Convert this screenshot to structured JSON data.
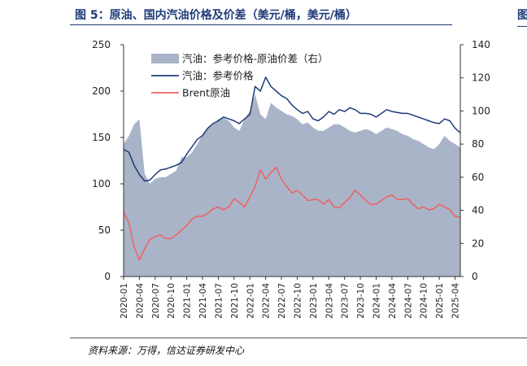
{
  "figure": {
    "title": "图 5：原油、国内汽油价格及价差（美元/桶，美元/桶）",
    "edge_title": "图",
    "source": "资料来源：万得，信达证券研发中心"
  },
  "chart_data": {
    "type": "area+line",
    "dates": [
      "2020-01",
      "2020-02",
      "2020-03",
      "2020-04",
      "2020-05",
      "2020-06",
      "2020-07",
      "2020-08",
      "2020-09",
      "2020-10",
      "2020-11",
      "2020-12",
      "2021-01",
      "2021-02",
      "2021-03",
      "2021-04",
      "2021-05",
      "2021-06",
      "2021-07",
      "2021-08",
      "2021-09",
      "2021-10",
      "2021-11",
      "2021-12",
      "2022-01",
      "2022-02",
      "2022-03",
      "2022-04",
      "2022-05",
      "2022-06",
      "2022-07",
      "2022-08",
      "2022-09",
      "2022-10",
      "2022-11",
      "2022-12",
      "2023-01",
      "2023-02",
      "2023-03",
      "2023-04",
      "2023-05",
      "2023-06",
      "2023-07",
      "2023-08",
      "2023-09",
      "2023-10",
      "2023-11",
      "2023-12",
      "2024-01",
      "2024-02",
      "2024-03",
      "2024-04",
      "2024-05",
      "2024-06",
      "2024-07",
      "2024-08",
      "2024-09",
      "2024-10",
      "2024-11",
      "2024-12",
      "2025-01",
      "2025-02",
      "2025-03",
      "2025-04",
      "2025-05"
    ],
    "x_tick_labels": [
      "2020-01",
      "2020-04",
      "2020-07",
      "2020-10",
      "2021-01",
      "2021-04",
      "2021-07",
      "2021-10",
      "2022-01",
      "2022-04",
      "2022-07",
      "2022-10",
      "2023-01",
      "2023-04",
      "2023-07",
      "2023-10",
      "2024-01",
      "2024-04",
      "2024-07",
      "2024-10",
      "2025-01",
      "2025-04"
    ],
    "y_left": {
      "ylim": [
        0,
        250
      ],
      "ticks": [
        0,
        50,
        100,
        150,
        200,
        250
      ]
    },
    "y_right": {
      "ylim": [
        0,
        140
      ],
      "ticks": [
        0,
        20,
        40,
        60,
        80,
        100,
        120,
        140
      ]
    },
    "legend_position": "top-left",
    "series": [
      {
        "name": "汽油：参考价格-原油价差（右）",
        "axis": "right",
        "style": "area",
        "color": "#aab4c8",
        "values": [
          80,
          85,
          92,
          95,
          62,
          56,
          59,
          60,
          60,
          62,
          64,
          72,
          72,
          75,
          80,
          86,
          90,
          92,
          95,
          96,
          94,
          90,
          88,
          95,
          100,
          110,
          98,
          95,
          105,
          102,
          100,
          98,
          97,
          95,
          92,
          93,
          90,
          88,
          88,
          90,
          92,
          92,
          90,
          88,
          87,
          88,
          89,
          88,
          86,
          88,
          90,
          89,
          88,
          86,
          85,
          83,
          82,
          80,
          78,
          77,
          80,
          85,
          82,
          80,
          78
        ]
      },
      {
        "name": "汽油：参考价格",
        "axis": "left",
        "style": "line",
        "color": "#1f3b78",
        "values": [
          137,
          134,
          120,
          110,
          103,
          104,
          110,
          115,
          116,
          118,
          120,
          123,
          132,
          140,
          148,
          152,
          160,
          165,
          168,
          172,
          170,
          168,
          165,
          170,
          175,
          205,
          200,
          215,
          205,
          200,
          195,
          192,
          185,
          180,
          176,
          178,
          170,
          168,
          172,
          178,
          175,
          180,
          178,
          182,
          180,
          176,
          176,
          175,
          172,
          176,
          180,
          178,
          177,
          176,
          176,
          174,
          172,
          170,
          168,
          166,
          165,
          170,
          168,
          160,
          155
        ]
      },
      {
        "name": "Brent原油",
        "axis": "left",
        "style": "line",
        "color": "#f06060",
        "values": [
          70,
          58,
          32,
          18,
          30,
          40,
          43,
          45,
          41,
          41,
          45,
          50,
          55,
          62,
          65,
          65,
          68,
          73,
          75,
          72,
          75,
          84,
          80,
          75,
          86,
          97,
          115,
          105,
          112,
          118,
          105,
          97,
          90,
          93,
          88,
          82,
          83,
          83,
          78,
          83,
          75,
          74,
          80,
          85,
          93,
          88,
          82,
          78,
          78,
          82,
          86,
          88,
          83,
          83,
          84,
          78,
          73,
          75,
          72,
          73,
          78,
          75,
          72,
          65,
          64
        ]
      }
    ]
  }
}
